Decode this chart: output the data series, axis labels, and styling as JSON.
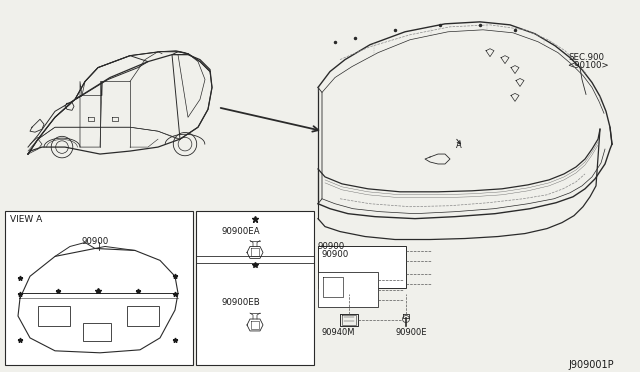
{
  "bg_color": "#f0f0eb",
  "line_color": "#2a2a2a",
  "text_color": "#1a1a1a",
  "part_number_main": "J909001P",
  "labels": {
    "view_a": "VIEW A",
    "sec_900": "SEC.900",
    "sec_90100": "<90100>",
    "part_90900": "90900",
    "part_90900EA": "90900EA",
    "part_90900EB": "90900EB",
    "part_90940M": "90940M",
    "part_90900E": "90900E",
    "label_A": "A"
  },
  "white": "#ffffff",
  "dashed_color": "#555555"
}
